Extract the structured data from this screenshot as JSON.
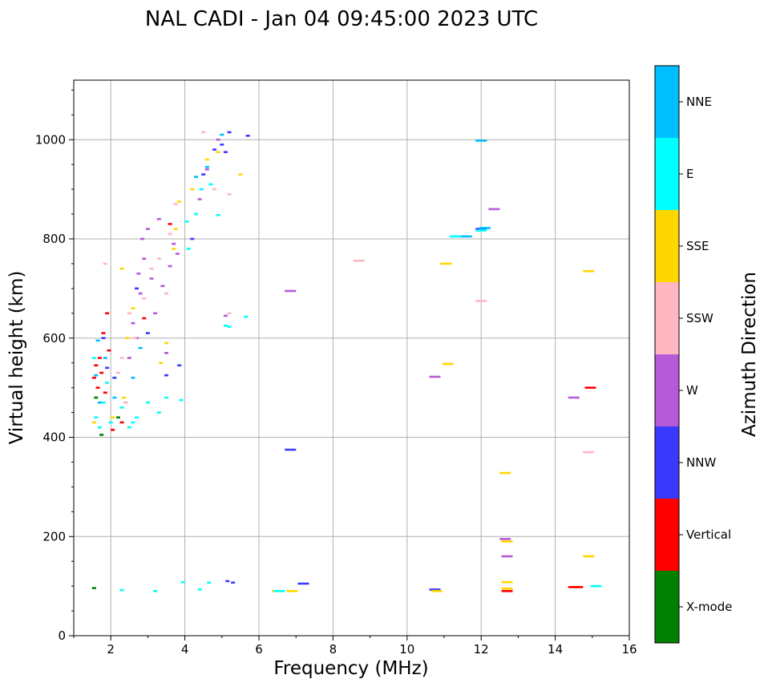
{
  "chart_data": {
    "type": "scatter",
    "title": "NAL CADI - Jan 04 09:45:00 2023 UTC",
    "xlabel": "Frequency (MHz)",
    "ylabel": "Virtual height (km)",
    "xlim": [
      1,
      16
    ],
    "ylim": [
      0,
      1120
    ],
    "xticks": [
      2,
      4,
      6,
      8,
      10,
      12,
      14,
      16
    ],
    "yticks": [
      0,
      200,
      400,
      600,
      800,
      1000
    ],
    "grid": true,
    "colorbar": {
      "label": "Azimuth Direction",
      "categories": [
        {
          "name": "X-mode",
          "color": "#008000"
        },
        {
          "name": "Vertical",
          "color": "#ff0000"
        },
        {
          "name": "NNW",
          "color": "#3a3aff"
        },
        {
          "name": "W",
          "color": "#b65ad8"
        },
        {
          "name": "SSW",
          "color": "#ffb6c1"
        },
        {
          "name": "SSE",
          "color": "#ffd700"
        },
        {
          "name": "E",
          "color": "#00ffff"
        },
        {
          "name": "NNE",
          "color": "#00bfff"
        }
      ]
    },
    "series": [
      {
        "name": "X-mode",
        "points": [
          [
            1.55,
            96
          ],
          [
            2.2,
            440
          ],
          [
            2.4,
            470
          ],
          [
            1.6,
            480
          ],
          [
            1.75,
            405
          ]
        ]
      },
      {
        "name": "Vertical",
        "points": [
          [
            1.55,
            520
          ],
          [
            1.6,
            545
          ],
          [
            1.65,
            500
          ],
          [
            1.7,
            560
          ],
          [
            1.75,
            530
          ],
          [
            1.8,
            610
          ],
          [
            1.85,
            490
          ],
          [
            1.9,
            650
          ],
          [
            1.95,
            575
          ],
          [
            2.05,
            415
          ],
          [
            2.3,
            430
          ],
          [
            14.5,
            98
          ],
          [
            14.6,
            98
          ],
          [
            14.95,
            500
          ],
          [
            12.7,
            90
          ],
          [
            3.6,
            830
          ],
          [
            2.9,
            640
          ]
        ]
      },
      {
        "name": "NNW",
        "points": [
          [
            1.8,
            600
          ],
          [
            1.9,
            540
          ],
          [
            2.1,
            520
          ],
          [
            3.5,
            525
          ],
          [
            3.85,
            545
          ],
          [
            4.2,
            800
          ],
          [
            4.5,
            930
          ],
          [
            4.8,
            980
          ],
          [
            5.0,
            990
          ],
          [
            5.1,
            975
          ],
          [
            5.2,
            1015
          ],
          [
            5.7,
            1008
          ],
          [
            5.3,
            107
          ],
          [
            5.15,
            110
          ],
          [
            6.85,
            375
          ],
          [
            7.2,
            105
          ],
          [
            10.75,
            93
          ],
          [
            12.0,
            820
          ],
          [
            3.0,
            610
          ],
          [
            2.7,
            700
          ]
        ]
      },
      {
        "name": "W",
        "points": [
          [
            2.5,
            560
          ],
          [
            2.7,
            600
          ],
          [
            2.75,
            730
          ],
          [
            2.8,
            690
          ],
          [
            2.85,
            800
          ],
          [
            2.9,
            760
          ],
          [
            3.0,
            820
          ],
          [
            3.1,
            720
          ],
          [
            3.2,
            650
          ],
          [
            3.3,
            840
          ],
          [
            3.4,
            705
          ],
          [
            3.5,
            570
          ],
          [
            3.6,
            745
          ],
          [
            3.7,
            790
          ],
          [
            4.4,
            880
          ],
          [
            4.6,
            940
          ],
          [
            4.9,
            1000
          ],
          [
            5.1,
            645
          ],
          [
            6.85,
            695
          ],
          [
            10.75,
            522
          ],
          [
            12.35,
            860
          ],
          [
            12.65,
            195
          ],
          [
            12.7,
            160
          ],
          [
            14.5,
            480
          ],
          [
            2.6,
            630
          ],
          [
            3.8,
            770
          ]
        ]
      },
      {
        "name": "SSW",
        "points": [
          [
            1.85,
            750
          ],
          [
            2.2,
            530
          ],
          [
            2.3,
            560
          ],
          [
            2.5,
            650
          ],
          [
            2.65,
            600
          ],
          [
            2.9,
            680
          ],
          [
            3.1,
            740
          ],
          [
            3.3,
            760
          ],
          [
            3.5,
            690
          ],
          [
            3.6,
            810
          ],
          [
            3.75,
            870
          ],
          [
            4.5,
            1015
          ],
          [
            4.8,
            900
          ],
          [
            5.2,
            890
          ],
          [
            5.2,
            650
          ],
          [
            8.7,
            756
          ],
          [
            12.0,
            675
          ],
          [
            14.9,
            370
          ],
          [
            2.4,
            470
          ]
        ]
      },
      {
        "name": "SSE",
        "points": [
          [
            1.55,
            430
          ],
          [
            1.8,
            470
          ],
          [
            2.05,
            440
          ],
          [
            2.3,
            740
          ],
          [
            2.35,
            480
          ],
          [
            2.45,
            600
          ],
          [
            2.6,
            660
          ],
          [
            3.35,
            550
          ],
          [
            3.5,
            590
          ],
          [
            3.7,
            780
          ],
          [
            3.75,
            820
          ],
          [
            3.85,
            875
          ],
          [
            4.2,
            900
          ],
          [
            4.6,
            960
          ],
          [
            4.9,
            975
          ],
          [
            5.5,
            930
          ],
          [
            6.5,
            90
          ],
          [
            6.9,
            90
          ],
          [
            11.05,
            750
          ],
          [
            11.1,
            548
          ],
          [
            12.65,
            328
          ],
          [
            12.7,
            108
          ],
          [
            12.7,
            190
          ],
          [
            14.9,
            735
          ],
          [
            14.9,
            160
          ],
          [
            10.8,
            90
          ],
          [
            12.7,
            95
          ]
        ]
      },
      {
        "name": "E",
        "points": [
          [
            1.55,
            560
          ],
          [
            1.6,
            440
          ],
          [
            1.7,
            420
          ],
          [
            1.8,
            470
          ],
          [
            1.9,
            510
          ],
          [
            2.0,
            430
          ],
          [
            2.3,
            460
          ],
          [
            2.5,
            420
          ],
          [
            2.6,
            430
          ],
          [
            2.7,
            440
          ],
          [
            3.0,
            470
          ],
          [
            3.3,
            450
          ],
          [
            3.5,
            480
          ],
          [
            3.95,
            108
          ],
          [
            4.1,
            780
          ],
          [
            4.3,
            850
          ],
          [
            4.45,
            900
          ],
          [
            4.7,
            910
          ],
          [
            4.9,
            848
          ],
          [
            5.1,
            625
          ],
          [
            5.2,
            623
          ],
          [
            5.65,
            643
          ],
          [
            6.55,
            90
          ],
          [
            11.3,
            805
          ],
          [
            12.0,
            817
          ],
          [
            15.1,
            100
          ],
          [
            2.3,
            92
          ],
          [
            3.2,
            90
          ],
          [
            4.4,
            93
          ],
          [
            4.65,
            107
          ],
          [
            3.9,
            475
          ],
          [
            4.05,
            835
          ]
        ]
      },
      {
        "name": "NNE",
        "points": [
          [
            1.6,
            525
          ],
          [
            1.65,
            595
          ],
          [
            1.7,
            470
          ],
          [
            1.85,
            560
          ],
          [
            2.1,
            480
          ],
          [
            2.6,
            520
          ],
          [
            2.8,
            580
          ],
          [
            4.3,
            925
          ],
          [
            4.6,
            945
          ],
          [
            5.0,
            1010
          ],
          [
            12.0,
            998
          ],
          [
            12.1,
            822
          ],
          [
            11.6,
            805
          ]
        ]
      }
    ]
  }
}
